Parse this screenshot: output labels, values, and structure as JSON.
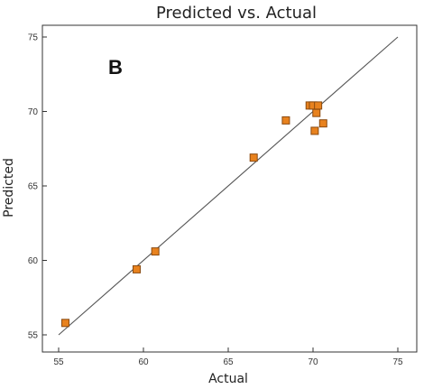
{
  "chart_data": {
    "type": "scatter",
    "title": "Predicted vs. Actual",
    "panel_label": "B",
    "xlabel": "Actual",
    "ylabel": "Predicted",
    "xlim": [
      55,
      75
    ],
    "ylim": [
      55,
      75
    ],
    "xticks": [
      55,
      60,
      65,
      70,
      75
    ],
    "yticks": [
      55,
      60,
      65,
      70,
      75
    ],
    "reference_line": {
      "from": [
        55,
        55
      ],
      "to": [
        75,
        75
      ]
    },
    "points": [
      {
        "x": 55.4,
        "y": 55.8
      },
      {
        "x": 59.6,
        "y": 59.4
      },
      {
        "x": 60.7,
        "y": 60.6
      },
      {
        "x": 66.5,
        "y": 66.9
      },
      {
        "x": 68.4,
        "y": 69.4
      },
      {
        "x": 69.8,
        "y": 70.4
      },
      {
        "x": 70.0,
        "y": 70.4
      },
      {
        "x": 70.3,
        "y": 70.4
      },
      {
        "x": 70.2,
        "y": 69.9
      },
      {
        "x": 70.6,
        "y": 69.2
      },
      {
        "x": 70.1,
        "y": 68.7
      }
    ],
    "marker_color": "#e8821e",
    "marker_edge": "#8a4a10",
    "line_color": "#555555",
    "grid": false
  }
}
